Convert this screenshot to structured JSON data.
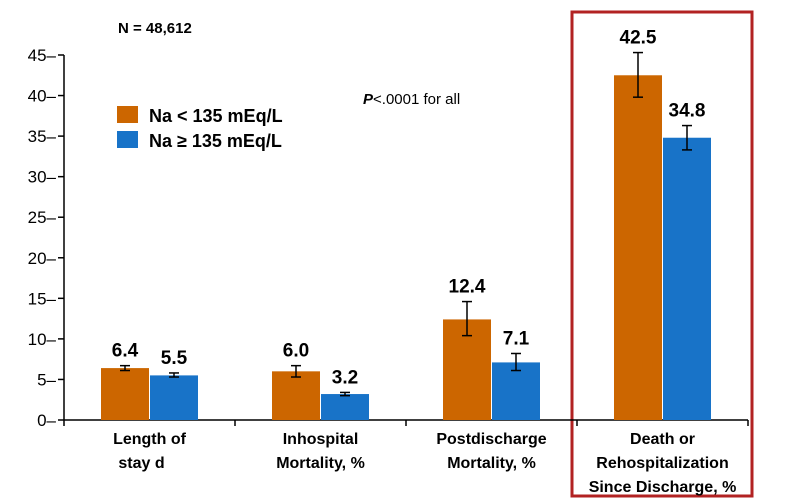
{
  "chart_data": {
    "type": "bar",
    "n_label": "N = 48,612",
    "annotation_p": "P",
    "annotation_rest": "<.0001 for all",
    "categories": [
      [
        "Length of",
        "stay d"
      ],
      [
        "Inhospital",
        "Mortality, %"
      ],
      [
        "Postdischarge",
        "Mortality, %"
      ],
      [
        "Death or",
        "Rehospitalization",
        "Since Discharge, %"
      ]
    ],
    "series": [
      {
        "name": "Na < 135 mEq/L",
        "color": "#CC6600",
        "values": [
          6.4,
          6.0,
          12.4,
          42.5
        ],
        "labels": [
          "6.4",
          "6.0",
          "12.4",
          "42.5"
        ],
        "err_low": [
          6.1,
          5.3,
          10.4,
          39.8
        ],
        "err_high": [
          6.7,
          6.7,
          14.6,
          45.3
        ]
      },
      {
        "name": "Na ≥ 135 mEq/L",
        "color": "#1873C8",
        "values": [
          5.5,
          3.2,
          7.1,
          34.8
        ],
        "labels": [
          "5.5",
          "3.2",
          "7.1",
          "34.8"
        ],
        "err_low": [
          5.3,
          3.0,
          6.1,
          33.3
        ],
        "err_high": [
          5.8,
          3.4,
          8.2,
          36.3
        ]
      }
    ],
    "ylim": [
      0,
      45
    ],
    "yticks": [
      0,
      5,
      10,
      15,
      20,
      25,
      30,
      35,
      40,
      45
    ],
    "highlight_category": 3,
    "highlight_color": "#B22222"
  }
}
